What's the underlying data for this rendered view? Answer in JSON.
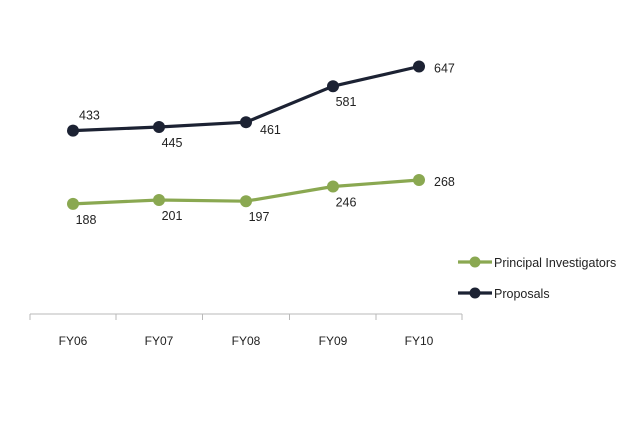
{
  "chart_data": {
    "type": "line",
    "title": "",
    "xlabel": "",
    "ylabel": "",
    "categories": [
      "FY06",
      "FY07",
      "FY08",
      "FY09",
      "FY10"
    ],
    "ylim": [
      0,
      800
    ],
    "grid": false,
    "legend_position": "right",
    "series": [
      {
        "name": "Proposals",
        "values": [
          433,
          445,
          461,
          581,
          647
        ],
        "color": "#1c2233",
        "labels": [
          "433",
          "445",
          "461",
          "581",
          "647"
        ],
        "label_positions": [
          "above",
          "below",
          "below-right",
          "below",
          "right"
        ]
      },
      {
        "name": "Principal Investigators",
        "values": [
          188,
          201,
          197,
          246,
          268
        ],
        "color": "#8aa851",
        "labels": [
          "188",
          "201",
          "197",
          "246",
          "268"
        ],
        "label_positions": [
          "below",
          "below",
          "below",
          "below",
          "right"
        ]
      }
    ]
  }
}
